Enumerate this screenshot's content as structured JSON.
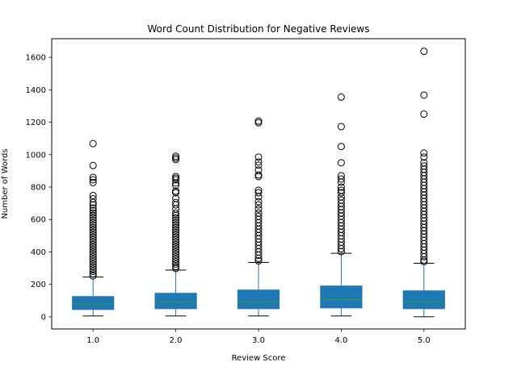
{
  "chart_data": {
    "type": "boxplot",
    "title": "Word Count Distribution for Negative Reviews",
    "xlabel": "Review Score",
    "ylabel": "Number of Words",
    "categories": [
      "1.0",
      "2.0",
      "3.0",
      "4.0",
      "5.0"
    ],
    "ylim": [
      -75,
      1715
    ],
    "yticks": [
      0,
      200,
      400,
      600,
      800,
      1000,
      1200,
      1400,
      1600
    ],
    "grid": false,
    "legend": "none",
    "box_color": "#1f77b4",
    "median_color": "#2ca02c",
    "boxes": [
      {
        "category": "1.0",
        "whisker_low": 5,
        "q1": 45,
        "median": 80,
        "q3": 125,
        "whisker_high": 245,
        "outliers": [
          1068,
          933,
          860,
          845,
          828,
          748,
          728,
          705,
          690,
          670,
          655,
          640,
          625,
          610,
          595,
          580,
          565,
          550,
          535,
          520,
          505,
          490,
          475,
          460,
          445,
          430,
          415,
          400,
          385,
          370,
          355,
          340,
          325,
          310,
          295,
          280,
          265,
          252
        ]
      },
      {
        "category": "2.0",
        "whisker_low": 5,
        "q1": 50,
        "median": 90,
        "q3": 145,
        "whisker_high": 288,
        "outliers": [
          990,
          980,
          970,
          865,
          855,
          845,
          825,
          810,
          775,
          765,
          730,
          705,
          690,
          665,
          640,
          625,
          610,
          595,
          580,
          565,
          550,
          535,
          520,
          505,
          490,
          475,
          460,
          445,
          430,
          415,
          400,
          385,
          370,
          355,
          340,
          325,
          310,
          298
        ]
      },
      {
        "category": "3.0",
        "whisker_low": 5,
        "q1": 50,
        "median": 90,
        "q3": 165,
        "whisker_high": 335,
        "outliers": [
          1207,
          1197,
          985,
          955,
          935,
          905,
          875,
          865,
          780,
          765,
          740,
          710,
          690,
          665,
          640,
          620,
          600,
          580,
          560,
          540,
          520,
          500,
          480,
          460,
          440,
          420,
          400,
          380,
          360,
          345
        ]
      },
      {
        "category": "4.0",
        "whisker_low": 5,
        "q1": 55,
        "median": 105,
        "q3": 190,
        "whisker_high": 392,
        "outliers": [
          1355,
          1173,
          1050,
          950,
          870,
          850,
          830,
          800,
          780,
          765,
          740,
          720,
          700,
          680,
          660,
          640,
          620,
          600,
          580,
          560,
          540,
          520,
          500,
          480,
          460,
          440,
          420,
          402
        ]
      },
      {
        "category": "5.0",
        "whisker_low": 0,
        "q1": 50,
        "median": 90,
        "q3": 160,
        "whisker_high": 330,
        "outliers": [
          1637,
          1367,
          1250,
          1010,
          985,
          950,
          930,
          910,
          890,
          870,
          850,
          830,
          810,
          790,
          770,
          750,
          730,
          710,
          690,
          670,
          650,
          630,
          610,
          590,
          570,
          550,
          530,
          510,
          490,
          470,
          450,
          430,
          410,
          390,
          370,
          350,
          340
        ]
      }
    ]
  }
}
